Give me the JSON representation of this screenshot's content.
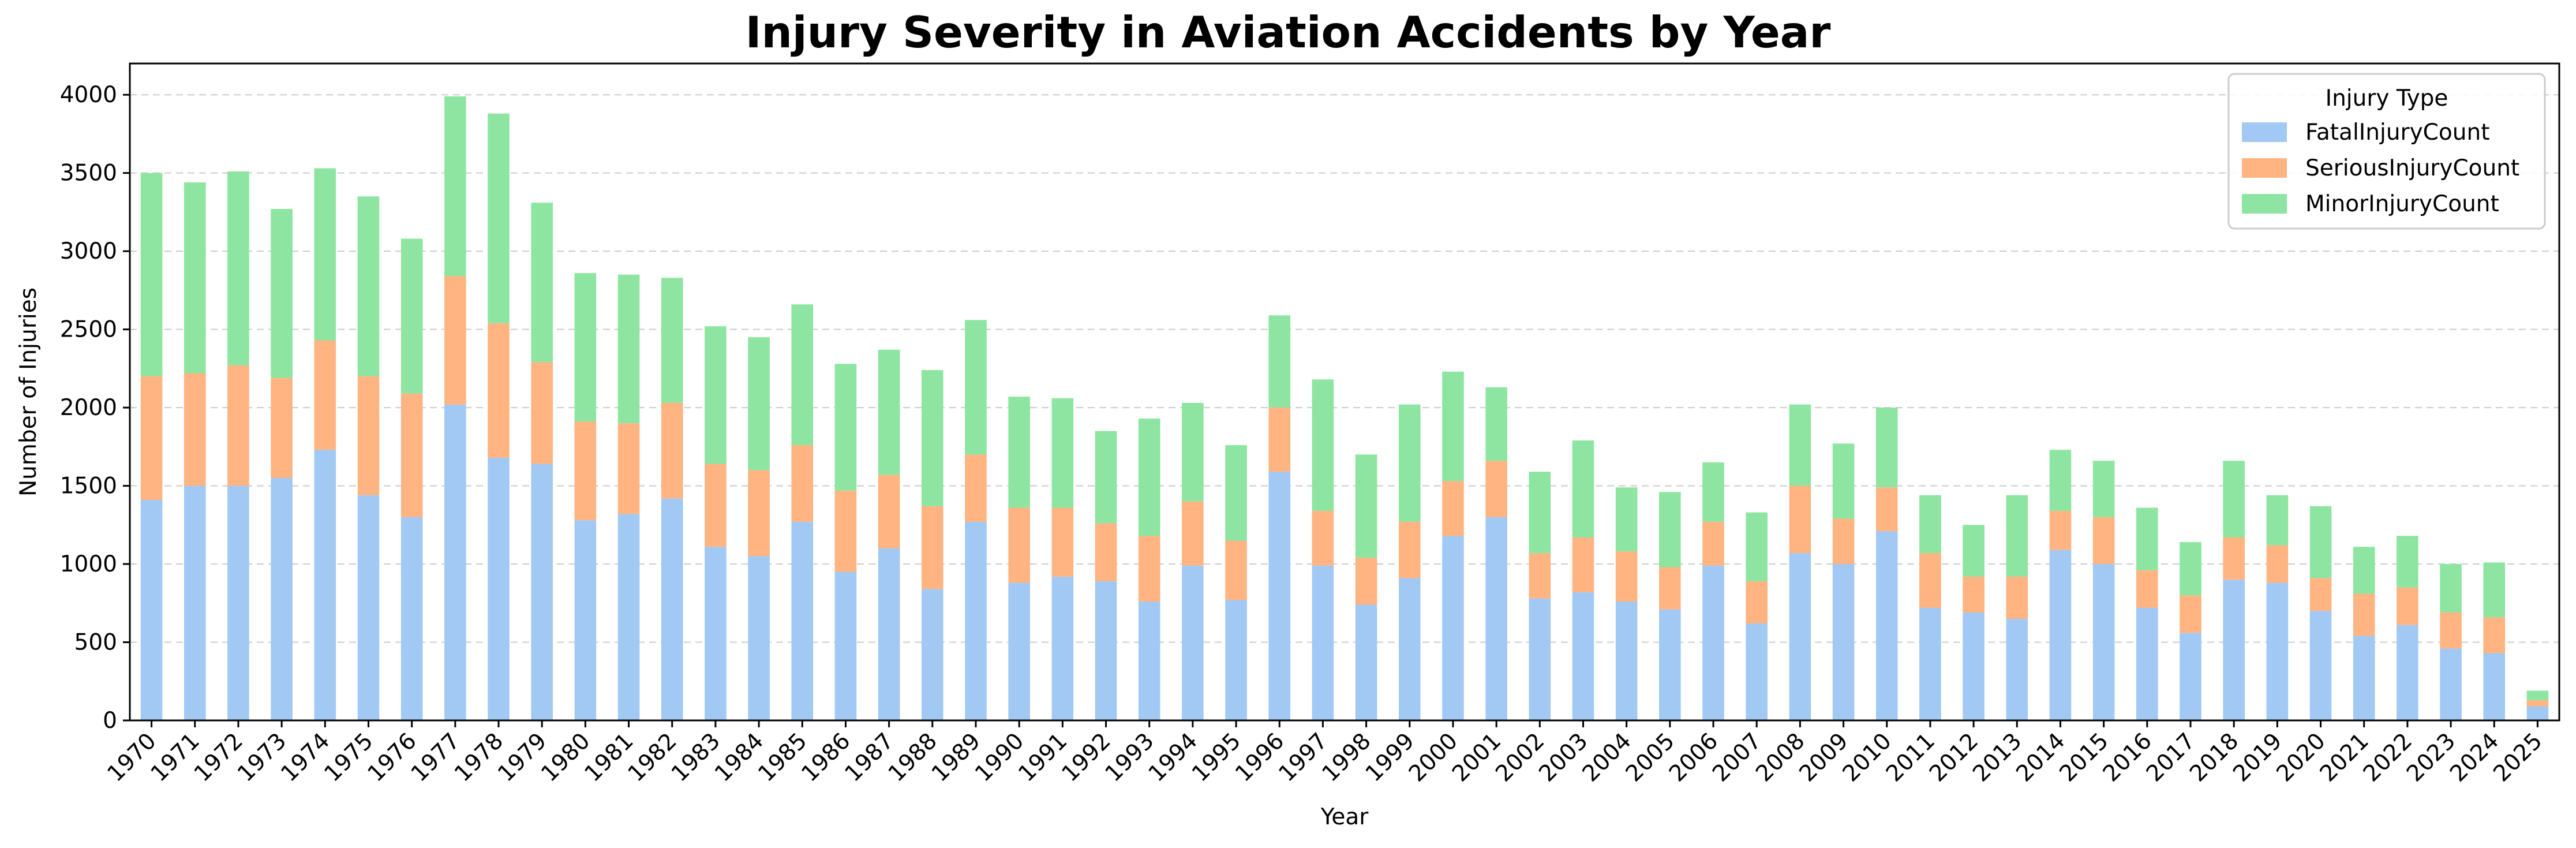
{
  "chart_data": {
    "type": "bar",
    "stacked": true,
    "title": "Injury Severity in Aviation Accidents by Year",
    "xlabel": "Year",
    "ylabel": "Number of Injuries",
    "ylim": [
      0,
      4200
    ],
    "yticks": [
      0,
      500,
      1000,
      1500,
      2000,
      2500,
      3000,
      3500,
      4000
    ],
    "grid": "horizontal-dashed",
    "legend": {
      "title": "Injury Type",
      "placement": "top-right"
    },
    "categories": [
      "1970",
      "1971",
      "1972",
      "1973",
      "1974",
      "1975",
      "1976",
      "1977",
      "1978",
      "1979",
      "1980",
      "1981",
      "1982",
      "1983",
      "1984",
      "1985",
      "1986",
      "1987",
      "1988",
      "1989",
      "1990",
      "1991",
      "1992",
      "1993",
      "1994",
      "1995",
      "1996",
      "1997",
      "1998",
      "1999",
      "2000",
      "2001",
      "2002",
      "2003",
      "2004",
      "2005",
      "2006",
      "2007",
      "2008",
      "2009",
      "2010",
      "2011",
      "2012",
      "2013",
      "2014",
      "2015",
      "2016",
      "2017",
      "2018",
      "2019",
      "2020",
      "2021",
      "2022",
      "2023",
      "2024",
      "2025"
    ],
    "series": [
      {
        "name": "FatalInjuryCount",
        "color": "#a1c9f4",
        "values": [
          1410,
          1500,
          1500,
          1550,
          1730,
          1440,
          1300,
          2020,
          1680,
          1640,
          1280,
          1320,
          1420,
          1110,
          1050,
          1270,
          950,
          1100,
          840,
          1270,
          880,
          920,
          890,
          760,
          990,
          770,
          1590,
          990,
          740,
          910,
          1180,
          1300,
          780,
          820,
          760,
          710,
          990,
          620,
          1070,
          1000,
          1210,
          720,
          690,
          650,
          1090,
          1000,
          720,
          560,
          900,
          880,
          700,
          540,
          610,
          460,
          430,
          90
        ]
      },
      {
        "name": "SeriousInjuryCount",
        "color": "#ffb482",
        "values": [
          790,
          720,
          770,
          640,
          700,
          760,
          790,
          820,
          860,
          650,
          630,
          580,
          610,
          530,
          550,
          490,
          520,
          470,
          530,
          430,
          480,
          440,
          370,
          420,
          410,
          380,
          410,
          350,
          300,
          360,
          350,
          360,
          290,
          350,
          320,
          270,
          280,
          270,
          430,
          290,
          280,
          350,
          230,
          270,
          250,
          300,
          240,
          240,
          270,
          240,
          210,
          270,
          240,
          230,
          230,
          40
        ]
      },
      {
        "name": "MinorInjuryCount",
        "color": "#8de5a1",
        "values": [
          1300,
          1220,
          1240,
          1080,
          1100,
          1150,
          990,
          1150,
          1340,
          1020,
          950,
          950,
          800,
          880,
          850,
          900,
          810,
          800,
          870,
          860,
          710,
          700,
          590,
          750,
          630,
          610,
          590,
          840,
          660,
          750,
          700,
          470,
          520,
          620,
          410,
          480,
          380,
          440,
          520,
          480,
          510,
          370,
          330,
          520,
          390,
          360,
          400,
          340,
          490,
          320,
          460,
          300,
          330,
          310,
          350,
          60
        ]
      }
    ]
  }
}
